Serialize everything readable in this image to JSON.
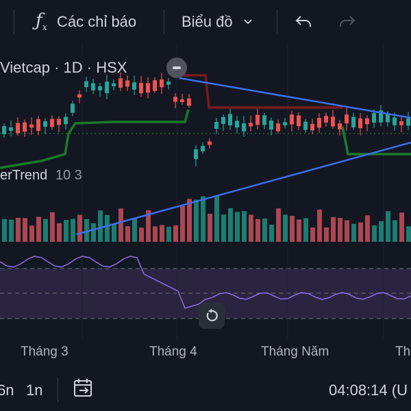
{
  "toolbar": {
    "indicators_label": "Các chỉ báo",
    "chart_label": "Biểu đồ",
    "icons": [
      "fx-icon",
      "chevron-down-icon",
      "undo-icon",
      "redo-icon"
    ]
  },
  "legend": {
    "symbol_line": "Vietcap · 1D · HSX",
    "supertrend_name": "erTrend",
    "supertrend_params": "10 3"
  },
  "xaxis": {
    "labels": [
      "Tháng 3",
      "Tháng 4",
      "Tháng Năm",
      "Th"
    ]
  },
  "bottom": {
    "range_a": "6n",
    "range_b": "1n",
    "time": "04:08:14 (U"
  },
  "colors": {
    "background": "#131722",
    "up": "#26a69a",
    "down": "#ef5350",
    "trendline": "#3d6ff0",
    "supertrend_up": "#1b7a2a",
    "supertrend_down": "#7a1c1c",
    "rsi": "#8e6ee8"
  }
}
